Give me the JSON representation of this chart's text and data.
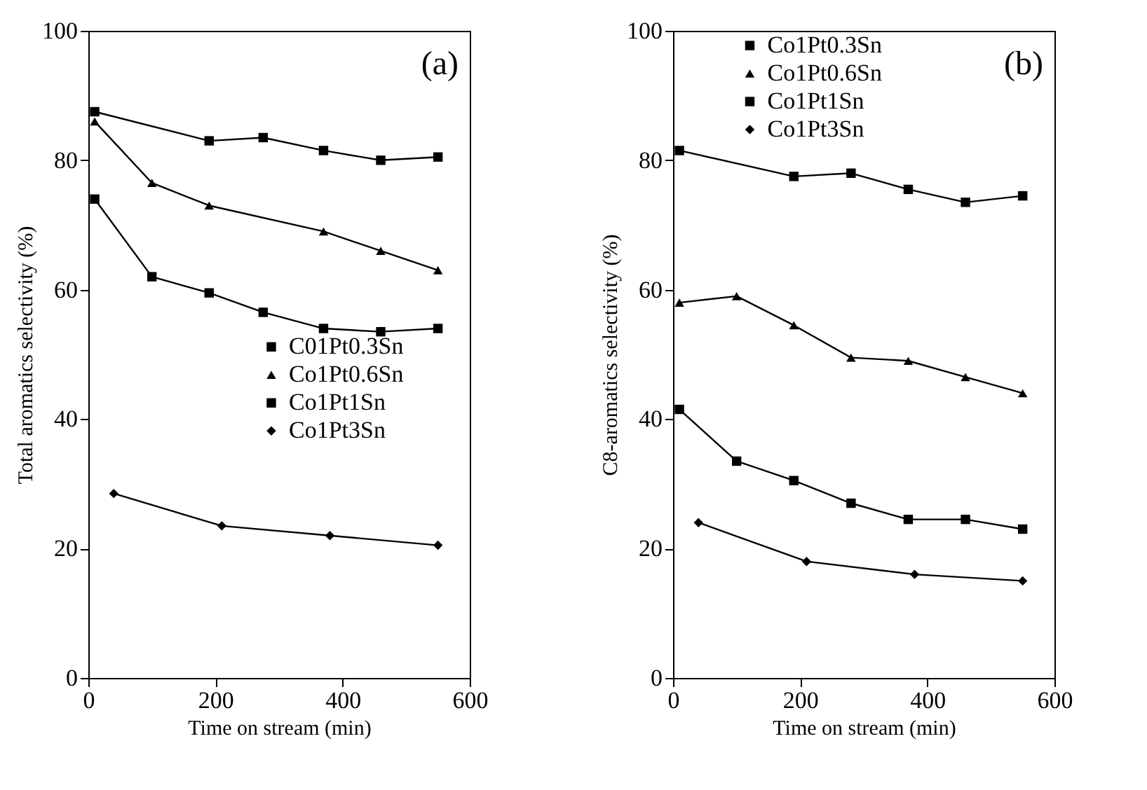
{
  "chart_data": [
    {
      "type": "line",
      "annotations": [
        "(a)"
      ],
      "xlabel": "Time on stream (min)",
      "ylabel": "Total aromatics selectivity (%)",
      "xlim": [
        0,
        600
      ],
      "xticks": [
        0,
        200,
        400,
        600
      ],
      "ylim": [
        0,
        100
      ],
      "yticks": [
        0,
        20,
        40,
        60,
        80,
        100
      ],
      "grid": false,
      "legend": "right",
      "line_style": "solid",
      "series": [
        {
          "name": "C01Pt0.3Sn",
          "color": "#000000",
          "marker": "square",
          "x": [
            10,
            100,
            190,
            275,
            370,
            460,
            550
          ],
          "values": [
            74,
            62,
            59.5,
            56.5,
            54,
            53.5,
            54
          ]
        },
        {
          "name": "Co1Pt0.6Sn",
          "color": "#000000",
          "marker": "triangle",
          "x": [
            10,
            100,
            190,
            370,
            460,
            550
          ],
          "values": [
            86,
            76.5,
            73,
            69,
            66,
            63
          ]
        },
        {
          "name": "Co1Pt1Sn",
          "color": "#000000",
          "marker": "square",
          "x": [
            10,
            190,
            275,
            370,
            460,
            550
          ],
          "values": [
            87.5,
            83,
            83.5,
            81.5,
            80,
            80.5
          ]
        },
        {
          "name": "Co1Pt3Sn",
          "color": "#000000",
          "marker": "diamond",
          "x": [
            40,
            210,
            380,
            550
          ],
          "values": [
            28.5,
            23.5,
            22,
            20.5
          ]
        }
      ]
    },
    {
      "type": "line",
      "annotations": [
        "(b)"
      ],
      "xlabel": "Time on stream (min)",
      "ylabel": "C8-aromatics selectivity (%)",
      "xlim": [
        0,
        600
      ],
      "xticks": [
        0,
        200,
        400,
        600
      ],
      "ylim": [
        0,
        100
      ],
      "yticks": [
        0,
        20,
        40,
        60,
        80,
        100
      ],
      "grid": false,
      "legend": "top",
      "line_style": "solid",
      "series": [
        {
          "name": "Co1Pt0.3Sn",
          "color": "#000000",
          "marker": "square",
          "x": [
            10,
            100,
            190,
            280,
            370,
            460,
            550
          ],
          "values": [
            41.5,
            33.5,
            30.5,
            27,
            24.5,
            24.5,
            23
          ]
        },
        {
          "name": "Co1Pt0.6Sn",
          "color": "#000000",
          "marker": "triangle",
          "x": [
            10,
            100,
            190,
            280,
            370,
            460,
            550
          ],
          "values": [
            58,
            59,
            54.5,
            49.5,
            49,
            46.5,
            44
          ]
        },
        {
          "name": "Co1Pt1Sn",
          "color": "#000000",
          "marker": "square",
          "x": [
            10,
            190,
            280,
            370,
            460,
            550
          ],
          "values": [
            81.5,
            77.5,
            78,
            75.5,
            73.5,
            74.5
          ]
        },
        {
          "name": "Co1Pt3Sn",
          "color": "#000000",
          "marker": "diamond",
          "x": [
            40,
            210,
            380,
            550
          ],
          "values": [
            24,
            18,
            16,
            15
          ]
        }
      ]
    }
  ]
}
